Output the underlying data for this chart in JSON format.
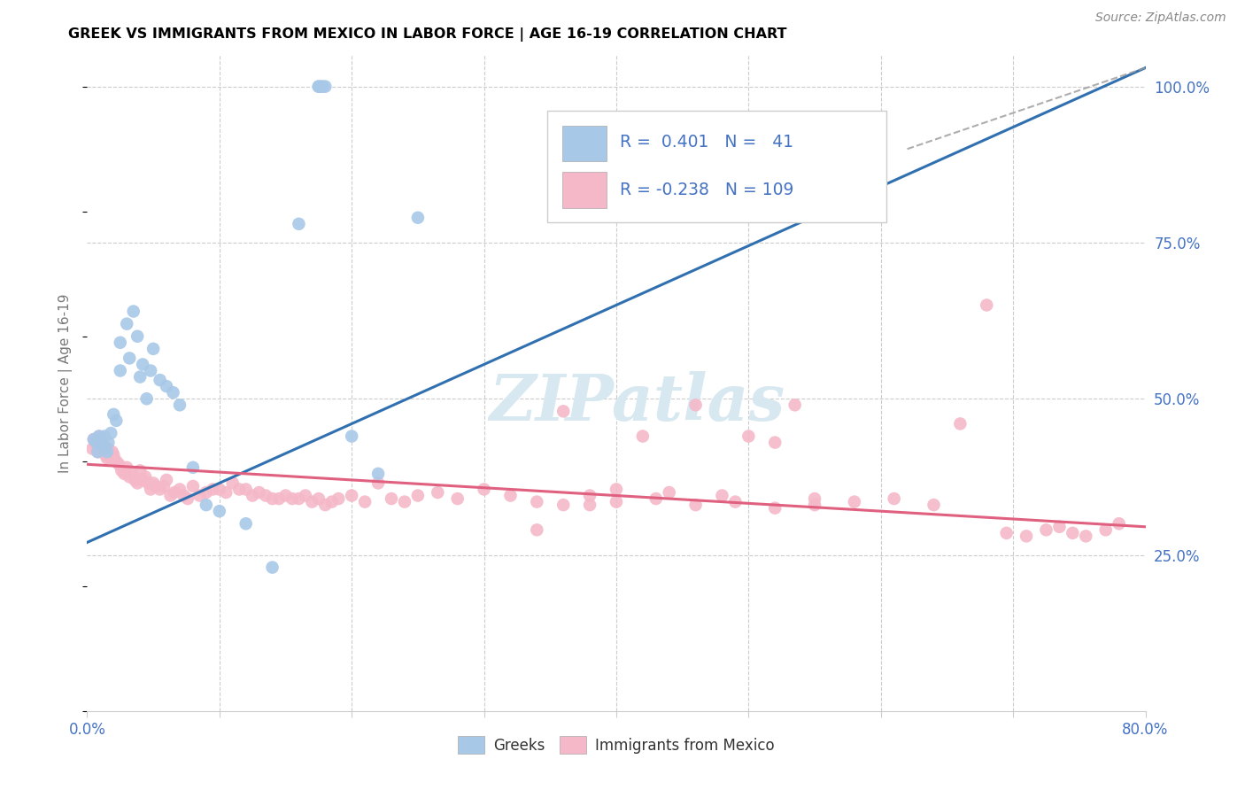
{
  "title": "GREEK VS IMMIGRANTS FROM MEXICO IN LABOR FORCE | AGE 16-19 CORRELATION CHART",
  "source": "Source: ZipAtlas.com",
  "ylabel": "In Labor Force | Age 16-19",
  "xlim": [
    0.0,
    0.8
  ],
  "ylim": [
    0.0,
    1.05
  ],
  "blue_R": 0.401,
  "blue_N": 41,
  "pink_R": -0.238,
  "pink_N": 109,
  "blue_color": "#a8c8e8",
  "pink_color": "#f4b8c8",
  "blue_line_color": "#3070b0",
  "pink_line_color": "#e06080",
  "trend_blue_x0": 0.0,
  "trend_blue_y0": 0.27,
  "trend_blue_x1": 0.8,
  "trend_blue_y1": 1.03,
  "trend_pink_x0": 0.0,
  "trend_pink_y0": 0.395,
  "trend_pink_x1": 0.8,
  "trend_pink_y1": 0.295,
  "trend_dashed_x0": 0.62,
  "trend_dashed_y0": 0.9,
  "trend_dashed_x1": 0.8,
  "trend_dashed_y1": 1.03,
  "watermark": "ZIPatlas",
  "legend_blues_label": "Greeks",
  "legend_pink_label": "Immigrants from Mexico",
  "blue_scatter_x": [
    0.005,
    0.007,
    0.008,
    0.009,
    0.01,
    0.011,
    0.012,
    0.013,
    0.014,
    0.015,
    0.016,
    0.018,
    0.02,
    0.022,
    0.025,
    0.025,
    0.03,
    0.032,
    0.035,
    0.038,
    0.04,
    0.042,
    0.045,
    0.048,
    0.05,
    0.055,
    0.06,
    0.065,
    0.07,
    0.08,
    0.09,
    0.1,
    0.12,
    0.14,
    0.16,
    0.2,
    0.22,
    0.25,
    0.175,
    0.177,
    0.18,
    0.175,
    0.178
  ],
  "blue_scatter_y": [
    0.435,
    0.43,
    0.415,
    0.44,
    0.435,
    0.43,
    0.425,
    0.44,
    0.42,
    0.415,
    0.43,
    0.445,
    0.475,
    0.465,
    0.545,
    0.59,
    0.62,
    0.565,
    0.64,
    0.6,
    0.535,
    0.555,
    0.5,
    0.545,
    0.58,
    0.53,
    0.52,
    0.51,
    0.49,
    0.39,
    0.33,
    0.32,
    0.3,
    0.23,
    0.78,
    0.44,
    0.38,
    0.79,
    1.0,
    1.0,
    1.0,
    1.0,
    1.0
  ],
  "pink_scatter_x": [
    0.004,
    0.005,
    0.006,
    0.007,
    0.008,
    0.009,
    0.01,
    0.011,
    0.012,
    0.013,
    0.014,
    0.015,
    0.016,
    0.017,
    0.018,
    0.019,
    0.02,
    0.022,
    0.024,
    0.026,
    0.028,
    0.03,
    0.032,
    0.034,
    0.036,
    0.038,
    0.04,
    0.042,
    0.044,
    0.046,
    0.048,
    0.05,
    0.052,
    0.055,
    0.058,
    0.06,
    0.063,
    0.066,
    0.07,
    0.073,
    0.076,
    0.08,
    0.085,
    0.09,
    0.095,
    0.1,
    0.105,
    0.11,
    0.115,
    0.12,
    0.125,
    0.13,
    0.135,
    0.14,
    0.145,
    0.15,
    0.155,
    0.16,
    0.165,
    0.17,
    0.175,
    0.18,
    0.185,
    0.19,
    0.2,
    0.21,
    0.22,
    0.23,
    0.24,
    0.25,
    0.265,
    0.28,
    0.3,
    0.32,
    0.34,
    0.36,
    0.38,
    0.4,
    0.43,
    0.46,
    0.49,
    0.52,
    0.55,
    0.58,
    0.61,
    0.64,
    0.66,
    0.68,
    0.695,
    0.71,
    0.725,
    0.735,
    0.745,
    0.755,
    0.77,
    0.78,
    0.34,
    0.36,
    0.38,
    0.4,
    0.42,
    0.44,
    0.46,
    0.48,
    0.5,
    0.52,
    0.535,
    0.55
  ],
  "pink_scatter_y": [
    0.42,
    0.435,
    0.43,
    0.425,
    0.415,
    0.44,
    0.435,
    0.43,
    0.425,
    0.415,
    0.41,
    0.405,
    0.42,
    0.415,
    0.405,
    0.415,
    0.41,
    0.4,
    0.395,
    0.385,
    0.38,
    0.39,
    0.375,
    0.38,
    0.37,
    0.365,
    0.385,
    0.37,
    0.375,
    0.365,
    0.355,
    0.365,
    0.36,
    0.355,
    0.36,
    0.37,
    0.345,
    0.35,
    0.355,
    0.345,
    0.34,
    0.36,
    0.345,
    0.35,
    0.355,
    0.355,
    0.35,
    0.365,
    0.355,
    0.355,
    0.345,
    0.35,
    0.345,
    0.34,
    0.34,
    0.345,
    0.34,
    0.34,
    0.345,
    0.335,
    0.34,
    0.33,
    0.335,
    0.34,
    0.345,
    0.335,
    0.365,
    0.34,
    0.335,
    0.345,
    0.35,
    0.34,
    0.355,
    0.345,
    0.335,
    0.33,
    0.345,
    0.335,
    0.34,
    0.33,
    0.335,
    0.325,
    0.33,
    0.335,
    0.34,
    0.33,
    0.46,
    0.65,
    0.285,
    0.28,
    0.29,
    0.295,
    0.285,
    0.28,
    0.29,
    0.3,
    0.29,
    0.48,
    0.33,
    0.355,
    0.44,
    0.35,
    0.49,
    0.345,
    0.44,
    0.43,
    0.49,
    0.34
  ]
}
